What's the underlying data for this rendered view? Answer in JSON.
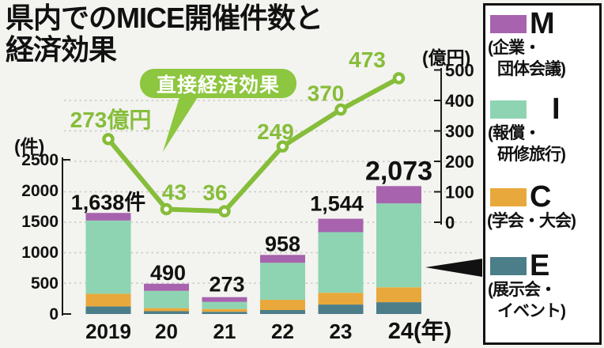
{
  "title": {
    "line1": "県内でのMICE開催件数と",
    "line2": "経済効果"
  },
  "colors": {
    "background": "#f3f3ef",
    "grid": "#c9c9c3",
    "axis": "#1a1a1a",
    "text": "#111111",
    "line_green": "#86bd3a",
    "badge_green": "#8dc63f",
    "M": "#a763ae",
    "I": "#8ed4b2",
    "C": "#e9a83b",
    "E": "#4b7e89"
  },
  "chart_data": {
    "type": "combo: stacked bar (left axis) + line (right axis)",
    "categories": [
      "2019",
      "20",
      "21",
      "22",
      "23",
      "24(年)"
    ],
    "bars": {
      "axis_label": "(件)",
      "axis_ticks": [
        2500,
        2000,
        1500,
        1000,
        500,
        0
      ],
      "ylim": [
        0,
        2500
      ],
      "grid": "dotted horizontal gridlines",
      "totals": [
        1638,
        490,
        273,
        958,
        1544,
        2073
      ],
      "total_labels": [
        "1,638件",
        "490",
        "273",
        "958",
        "1,544",
        "2,073"
      ],
      "stack_order_bottom_to_top": [
        "E",
        "C",
        "I",
        "M"
      ],
      "series": [
        {
          "name": "M",
          "label": "M(企業・団体会議)",
          "values_estimated": [
            123,
            115,
            77,
            128,
            217,
            280
          ]
        },
        {
          "name": "I",
          "label": "I(報償・研修旅行)",
          "values_estimated": [
            1187,
            280,
            115,
            600,
            983,
            1360
          ]
        },
        {
          "name": "C",
          "label": "C(学会・大会)",
          "values_estimated": [
            205,
            50,
            45,
            166,
            191,
            242
          ]
        },
        {
          "name": "E",
          "label": "E(展示会・イベント)",
          "values_estimated": [
            123,
            45,
            36,
            64,
            153,
            191
          ]
        }
      ]
    },
    "line": {
      "name": "直接経済効果",
      "axis_label": "(億円)",
      "axis_ticks": [
        500,
        400,
        300,
        200,
        100,
        0
      ],
      "ylim": [
        0,
        500
      ],
      "values": [
        273,
        43,
        36,
        249,
        370,
        473
      ],
      "point_labels": [
        "273億円",
        "43",
        "36",
        "249",
        "370",
        "473"
      ],
      "legend_position": "callout badge above line"
    }
  },
  "legend": {
    "items": [
      {
        "letter": "M",
        "desc_line1": "(企業・",
        "desc_line2": "団体会議)",
        "color": "#a763ae"
      },
      {
        "letter": "I",
        "desc_line1": "(報償・",
        "desc_line2": "研修旅行)",
        "color": "#8ed4b2"
      },
      {
        "letter": "C",
        "desc_line1": "(学会・大会)",
        "desc_line2": "",
        "color": "#e9a83b"
      },
      {
        "letter": "E",
        "desc_line1": "(展示会・",
        "desc_line2": "イベント)",
        "color": "#4b7e89"
      }
    ]
  }
}
